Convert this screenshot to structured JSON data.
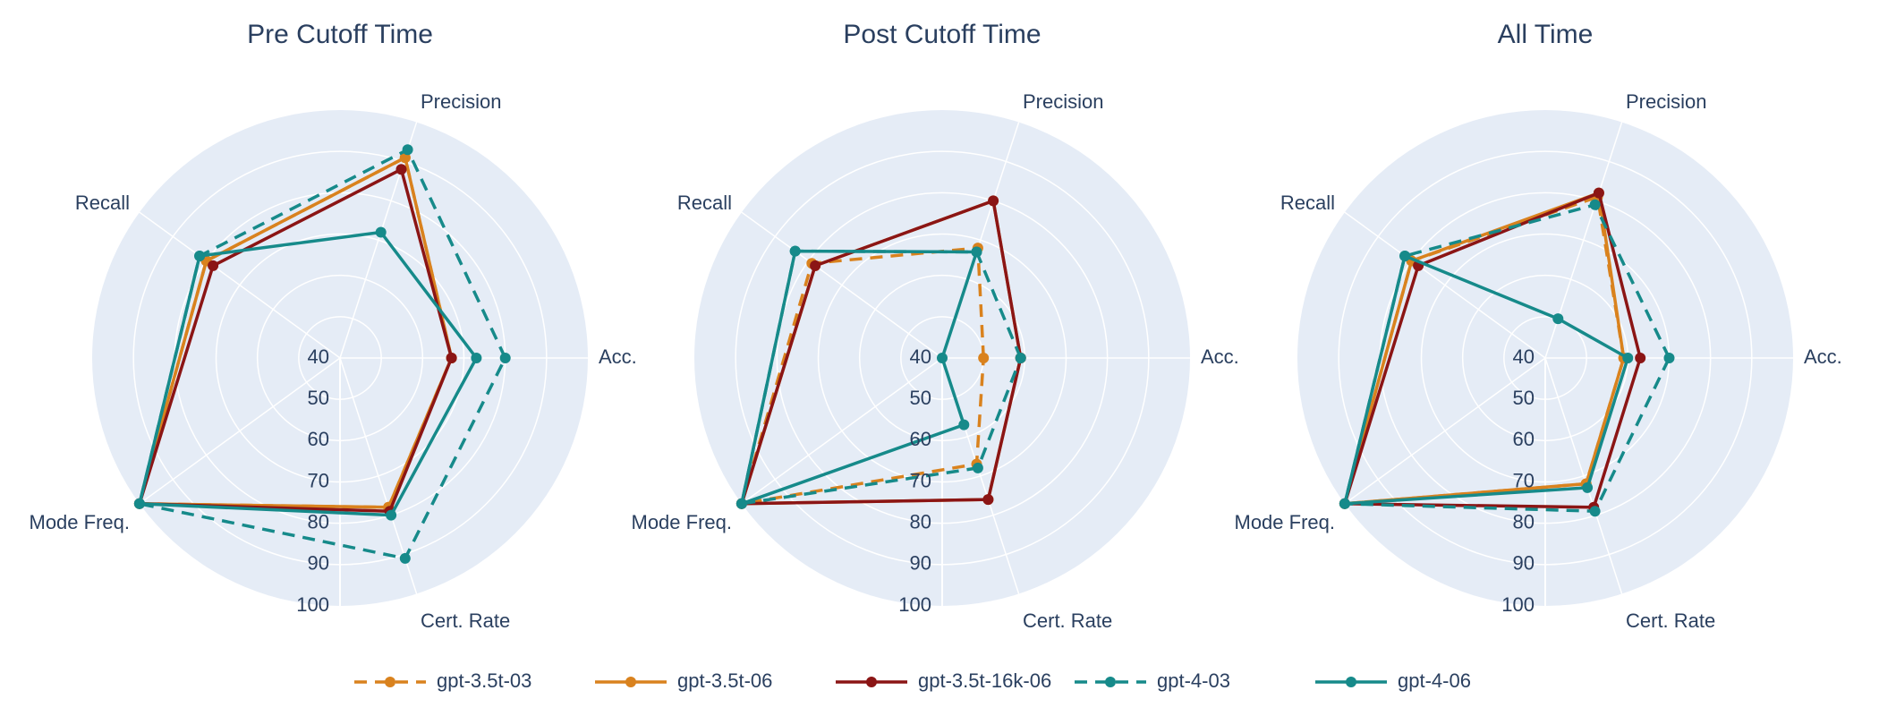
{
  "chart_data": {
    "type": "radar",
    "axes": [
      "Acc.",
      "Precision",
      "Recall",
      "Mode Freq.",
      "Cert. Rate"
    ],
    "radial_range": [
      40,
      100
    ],
    "radial_ticks": [
      "40",
      "50",
      "60",
      "70",
      "80",
      "90",
      "100"
    ],
    "grid": true,
    "legend_position": "bottom",
    "background_color": "#e5ecf6",
    "series_styles": [
      {
        "name": "gpt-3.5t-03",
        "color": "#d9821e",
        "dash": true
      },
      {
        "name": "gpt-3.5t-06",
        "color": "#d9821e",
        "dash": false
      },
      {
        "name": "gpt-3.5t-16k-06",
        "color": "#8b1515",
        "dash": false
      },
      {
        "name": "gpt-4-03",
        "color": "#168a8a",
        "dash": true
      },
      {
        "name": "gpt-4-06",
        "color": "#168a8a",
        "dash": false
      }
    ],
    "panels": [
      {
        "title": "Pre Cutoff Time",
        "series": [
          {
            "name": "gpt-3.5t-03",
            "values": [
              67,
              91,
              80,
              100,
              78
            ]
          },
          {
            "name": "gpt-3.5t-06",
            "values": [
              67,
              91,
              80,
              100,
              78
            ]
          },
          {
            "name": "gpt-3.5t-16k-06",
            "values": [
              67,
              88,
              78,
              100,
              79
            ]
          },
          {
            "name": "gpt-4-03",
            "values": [
              80,
              93,
              82,
              100,
              91
            ]
          },
          {
            "name": "gpt-4-06",
            "values": [
              73,
              72,
              82,
              100,
              80
            ]
          }
        ]
      },
      {
        "title": "Post Cutoff Time",
        "series": [
          {
            "name": "gpt-3.5t-03",
            "values": [
              50,
              68,
              79,
              100,
              67
            ]
          },
          {
            "name": "gpt-3.5t-06",
            "values": [
              59,
              80,
              78,
              100,
              76
            ]
          },
          {
            "name": "gpt-3.5t-16k-06",
            "values": [
              59,
              80,
              78,
              100,
              76
            ]
          },
          {
            "name": "gpt-4-03",
            "values": [
              59,
              67,
              84,
              100,
              68
            ]
          },
          {
            "name": "gpt-4-06",
            "values": [
              40,
              67,
              84,
              100,
              57
            ]
          }
        ]
      },
      {
        "title": "All Time",
        "series": [
          {
            "name": "gpt-3.5t-03",
            "values": [
              59,
              81,
              80,
              100,
              72
            ]
          },
          {
            "name": "gpt-3.5t-06",
            "values": [
              59,
              82,
              80,
              100,
              72
            ]
          },
          {
            "name": "gpt-3.5t-16k-06",
            "values": [
              63,
              82,
              78,
              100,
              78
            ]
          },
          {
            "name": "gpt-4-03",
            "values": [
              70,
              79,
              82,
              100,
              79
            ]
          },
          {
            "name": "gpt-4-06",
            "values": [
              60,
              50,
              82,
              100,
              73
            ]
          }
        ]
      }
    ]
  }
}
